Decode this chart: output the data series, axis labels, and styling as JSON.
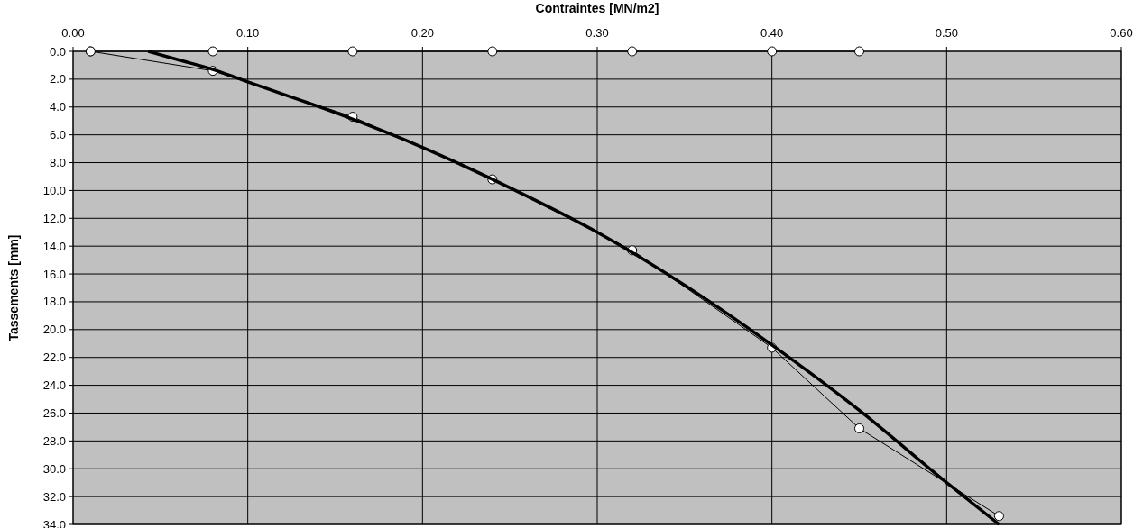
{
  "chart_data": {
    "type": "line",
    "xlabel": "Contraintes [MN/m2]",
    "ylabel": "Tassements [mm]",
    "xlim": [
      0,
      0.6
    ],
    "ylim": [
      34,
      0
    ],
    "xticks": [
      {
        "value": 0,
        "label": "0.00"
      },
      {
        "value": 0.1,
        "label": "0.10"
      },
      {
        "value": 0.2,
        "label": "0.20"
      },
      {
        "value": 0.3,
        "label": "0.30"
      },
      {
        "value": 0.4,
        "label": "0.40"
      },
      {
        "value": 0.5,
        "label": "0.50"
      },
      {
        "value": 0.6,
        "label": "0.60"
      }
    ],
    "yticks": [
      {
        "value": 0,
        "label": "0.0"
      },
      {
        "value": 2,
        "label": "2.0"
      },
      {
        "value": 4,
        "label": "4.0"
      },
      {
        "value": 6,
        "label": "6.0"
      },
      {
        "value": 8,
        "label": "8.0"
      },
      {
        "value": 10,
        "label": "10.0"
      },
      {
        "value": 12,
        "label": "12.0"
      },
      {
        "value": 14,
        "label": "14.0"
      },
      {
        "value": 16,
        "label": "16.0"
      },
      {
        "value": 18,
        "label": "18.0"
      },
      {
        "value": 20,
        "label": "20.0"
      },
      {
        "value": 22,
        "label": "22.0"
      },
      {
        "value": 24,
        "label": "24.0"
      },
      {
        "value": 26,
        "label": "26.0"
      },
      {
        "value": 28,
        "label": "28.0"
      },
      {
        "value": 30,
        "label": "30.0"
      },
      {
        "value": 32,
        "label": "32.0"
      },
      {
        "value": 34,
        "label": "34.0"
      }
    ],
    "grid": true,
    "series": [
      {
        "color": "#000000",
        "marker": "circle",
        "x": [
          0.01,
          0.08,
          0.16,
          0.24,
          0.32,
          0.4,
          0.45
        ],
        "values": [
          0,
          0,
          0,
          0,
          0,
          0,
          0
        ]
      },
      {
        "color": "#000000",
        "marker": "circle",
        "x": [
          0.01,
          0.08,
          0.16,
          0.24,
          0.32,
          0.4,
          0.45,
          0.53
        ],
        "values": [
          0,
          1.4,
          4.7,
          9.2,
          14.3,
          21.3,
          27.1,
          33.4
        ]
      },
      {
        "color": "#000000",
        "marker": "none",
        "x": [
          0.043,
          0.06,
          0.08,
          0.1,
          0.15,
          0.2,
          0.25,
          0.3,
          0.35,
          0.4,
          0.45,
          0.5,
          0.53
        ],
        "values": [
          0,
          0.6,
          1.3,
          2.2,
          4.4,
          6.9,
          9.8,
          13.0,
          16.8,
          21.1,
          25.8,
          31.0,
          34.0
        ]
      }
    ]
  }
}
